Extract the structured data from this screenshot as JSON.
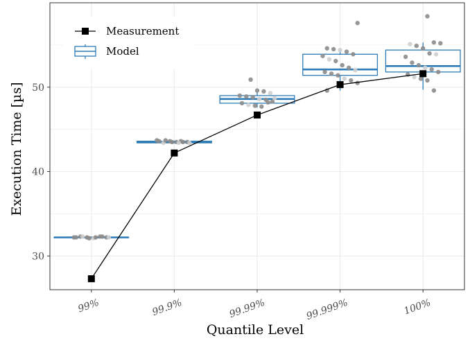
{
  "chart_data": {
    "type": "box+line",
    "xlabel": "Quantile Level",
    "ylabel": "Execution Time [µs]",
    "categories": [
      "99%",
      "99.9%",
      "99.99%",
      "99.999%",
      "100%"
    ],
    "ylim": [
      26,
      60
    ],
    "yticks": [
      30,
      40,
      50
    ],
    "grid": true,
    "legend": {
      "position": "top-left",
      "items": [
        {
          "key": "measurement",
          "label": "Measurement"
        },
        {
          "key": "model",
          "label": "Model"
        }
      ]
    },
    "colors": {
      "model": "#2c7bb6",
      "measurement": "#000000",
      "points": "#8c8c8c",
      "grid": "#ebebeb"
    },
    "measurement": [
      27.3,
      42.2,
      46.7,
      50.3,
      51.6
    ],
    "model_boxes": [
      {
        "q1": 32.2,
        "median": 32.2,
        "q3": 32.2,
        "whisker_low": 32.2,
        "whisker_high": 32.2
      },
      {
        "q1": 43.4,
        "median": 43.5,
        "q3": 43.6,
        "whisker_low": 43.4,
        "whisker_high": 43.6
      },
      {
        "q1": 48.1,
        "median": 48.6,
        "q3": 49.0,
        "whisker_low": 47.6,
        "whisker_high": 49.5
      },
      {
        "q1": 51.4,
        "median": 52.1,
        "q3": 53.9,
        "whisker_low": 49.6,
        "whisker_high": 54.4
      },
      {
        "q1": 51.8,
        "median": 52.5,
        "q3": 54.4,
        "whisker_low": 49.7,
        "whisker_high": 55.3
      }
    ],
    "model_points": [
      [
        32.2,
        32.3,
        32.2,
        32.1,
        32.3,
        32.2,
        32.2,
        32.3,
        32.1,
        32.2,
        32.3,
        32.2
      ],
      [
        43.6,
        43.5,
        43.7,
        43.4,
        43.6,
        43.5,
        43.5,
        43.4,
        43.6,
        43.7,
        43.5,
        43.4
      ],
      [
        50.9,
        49.6,
        49.5,
        49.3,
        49.0,
        48.9,
        48.8,
        48.6,
        48.5,
        48.3,
        48.1,
        47.9,
        47.8,
        47.7,
        48.2,
        48.7
      ],
      [
        57.6,
        54.6,
        54.5,
        54.4,
        54.2,
        53.9,
        53.7,
        53.3,
        53.1,
        52.6,
        52.3,
        52.0,
        51.8,
        51.6,
        51.4,
        51.0,
        50.8,
        50.5,
        49.6
      ],
      [
        58.4,
        55.3,
        55.2,
        55.1,
        54.9,
        54.6,
        54.0,
        53.9,
        53.6,
        52.9,
        52.6,
        52.3,
        52.1,
        51.8,
        51.5,
        51.2,
        51.0,
        50.8,
        49.6
      ]
    ]
  }
}
